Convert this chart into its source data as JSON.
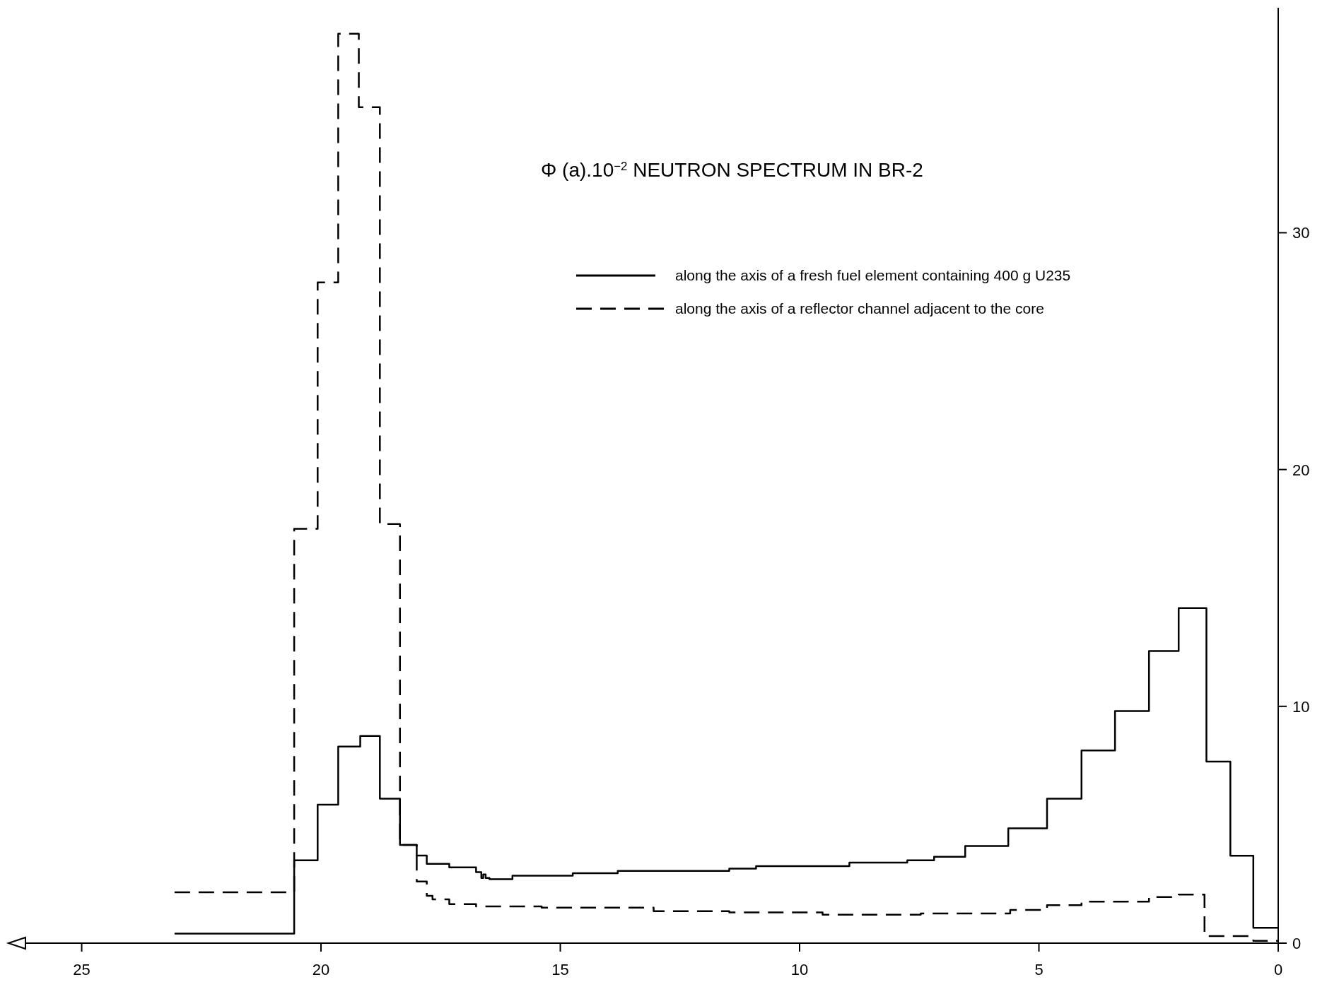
{
  "chart_data": {
    "type": "step",
    "title": "Φ (a).10$^{−2}$  NEUTRON SPECTRUM IN BR-2",
    "xlim": [
      26.5,
      0
    ],
    "xticks": [
      25,
      20,
      15,
      10,
      5,
      0
    ],
    "ylim": [
      0,
      39.5
    ],
    "yticks": [
      0,
      10,
      20,
      30
    ],
    "grid": false,
    "legend": "top right",
    "series": [
      {
        "name": "along the axis of a fresh fuel element containing 400 g U235",
        "color": "#000000",
        "line_style": "solid",
        "x": [
          23.06,
          20.56,
          20.07,
          19.64,
          19.18,
          18.77,
          18.35,
          18.0,
          17.79,
          17.32,
          16.76,
          16.65,
          16.61,
          16.56,
          16.48,
          16.0,
          14.74,
          13.8,
          11.47,
          10.91,
          8.96,
          7.75,
          7.19,
          6.54,
          5.64,
          4.83,
          4.11,
          3.41,
          2.7,
          2.08,
          1.5,
          1.0,
          0.52,
          0
        ],
        "values": [
          0.4,
          3.5,
          5.85,
          8.3,
          8.75,
          6.1,
          4.15,
          3.7,
          3.35,
          3.2,
          3.0,
          2.75,
          2.9,
          2.75,
          2.7,
          2.85,
          2.95,
          3.05,
          3.15,
          3.25,
          3.4,
          3.5,
          3.65,
          4.1,
          4.85,
          6.1,
          8.14,
          9.8,
          12.34,
          14.15,
          7.67,
          3.69,
          0.65,
          0.65
        ]
      },
      {
        "name": "along the axis of a reflector channel adjacent to the core",
        "color": "#000000",
        "line_style": "dashed",
        "x": [
          23.06,
          20.56,
          20.07,
          19.64,
          19.21,
          18.77,
          18.35,
          18.0,
          17.79,
          17.67,
          17.32,
          16.76,
          15.39,
          13.05,
          11.47,
          9.52,
          7.47,
          5.6,
          4.83,
          4.11,
          2.7,
          2.08,
          1.54,
          0.52,
          0
        ],
        "values": [
          2.15,
          17.5,
          27.9,
          38.4,
          35.3,
          17.7,
          4.15,
          2.6,
          2.0,
          1.85,
          1.65,
          1.55,
          1.5,
          1.35,
          1.3,
          1.2,
          1.25,
          1.4,
          1.6,
          1.75,
          1.95,
          2.05,
          0.3,
          0.1,
          0.1
        ]
      }
    ]
  }
}
